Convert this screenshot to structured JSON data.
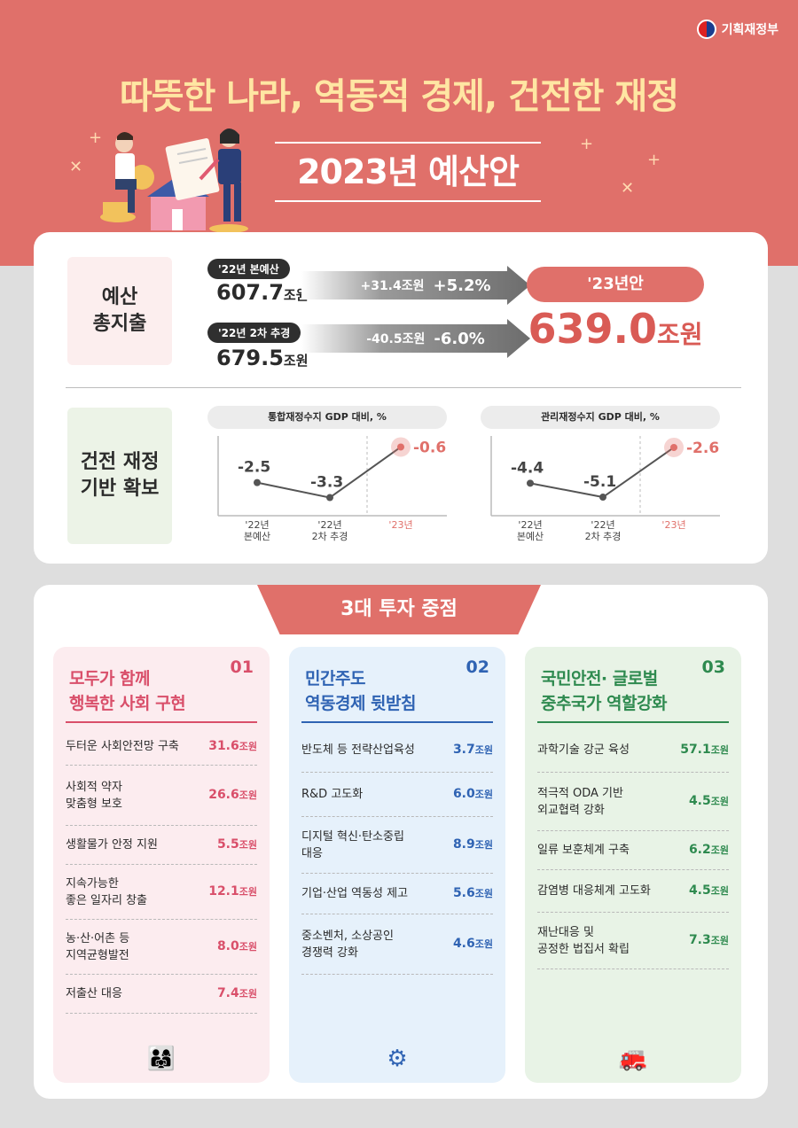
{
  "header": {
    "ministry": "기획재정부",
    "headline": "따뜻한 나라, 역동적 경제, 건전한 재정",
    "title": "2023년 예산안"
  },
  "summary": {
    "label": "예산\n총지출",
    "row1": {
      "tag": "'22년 본예산",
      "value": "607.7",
      "unit": "조원",
      "diff": "+31.4조원",
      "pct": "+5.2%"
    },
    "row2": {
      "tag": "'22년 2차 추경",
      "value": "679.5",
      "unit": "조원",
      "diff": "-40.5조원",
      "pct": "-6.0%"
    },
    "result_tag": "'23년안",
    "result_value": "639.0",
    "result_unit": "조원"
  },
  "fiscal": {
    "label": "건전 재정\n기반 확보",
    "colors": {
      "line": "#555555",
      "highlight": "#e0706a"
    }
  },
  "chart_data": [
    {
      "type": "line",
      "title": "통합재정수지 GDP 대비, %",
      "categories": [
        "'22년\n본예산",
        "'22년\n2차 추경",
        "'23년"
      ],
      "values": [
        -2.5,
        -3.3,
        -0.6
      ],
      "labels": [
        "-2.5",
        "-3.3",
        "-0.6"
      ]
    },
    {
      "type": "line",
      "title": "관리재정수지 GDP 대비, %",
      "categories": [
        "'22년\n본예산",
        "'22년\n2차 추경",
        "'23년"
      ],
      "values": [
        -4.4,
        -5.1,
        -2.6
      ],
      "labels": [
        "-4.4",
        "-5.1",
        "-2.6"
      ]
    }
  ],
  "focus": {
    "title": "3대 투자 중점",
    "columns": [
      {
        "num": "01",
        "head": "모두가 함께\n행복한 사회 구현",
        "color": "#d94f6a",
        "items": [
          {
            "label": "두터운 사회안전망 구축",
            "value": "31.6",
            "unit": "조원"
          },
          {
            "label": "사회적 약자\n맞춤형 보호",
            "value": "26.6",
            "unit": "조원"
          },
          {
            "label": "생활물가 안정 지원",
            "value": "5.5",
            "unit": "조원"
          },
          {
            "label": "지속가능한\n좋은 일자리 창출",
            "value": "12.1",
            "unit": "조원"
          },
          {
            "label": "농·산·어촌 등\n지역균형발전",
            "value": "8.0",
            "unit": "조원"
          },
          {
            "label": "저출산 대응",
            "value": "7.4",
            "unit": "조원"
          }
        ],
        "icon": "family-icon"
      },
      {
        "num": "02",
        "head": "민간주도\n역동경제 뒷받침",
        "color": "#2f63b3",
        "items": [
          {
            "label": "반도체 등 전략산업육성",
            "value": "3.7",
            "unit": "조원"
          },
          {
            "label": "R&D 고도화",
            "value": "6.0",
            "unit": "조원"
          },
          {
            "label": "디지털 혁신·탄소중립\n대응",
            "value": "8.9",
            "unit": "조원"
          },
          {
            "label": "기업·산업 역동성 제고",
            "value": "5.6",
            "unit": "조원"
          },
          {
            "label": "중소벤처, 소상공인\n경쟁력 강화",
            "value": "4.6",
            "unit": "조원"
          }
        ],
        "icon": "robot-arm-icon"
      },
      {
        "num": "03",
        "head": "국민안전· 글로벌\n중추국가 역할강화",
        "color": "#2e8a4f",
        "items": [
          {
            "label": "과학기술 강군 육성",
            "value": "57.1",
            "unit": "조원"
          },
          {
            "label": "적극적 ODA 기반\n외교협력 강화",
            "value": "4.5",
            "unit": "조원"
          },
          {
            "label": "일류 보훈체계 구축",
            "value": "6.2",
            "unit": "조원"
          },
          {
            "label": "감염병 대응체계 고도화",
            "value": "4.5",
            "unit": "조원"
          },
          {
            "label": "재난대응 및\n공정한 법집서 확립",
            "value": "7.3",
            "unit": "조원"
          }
        ],
        "icon": "tank-icon"
      }
    ]
  }
}
